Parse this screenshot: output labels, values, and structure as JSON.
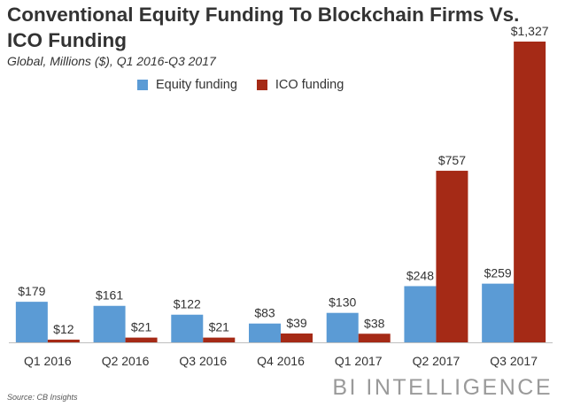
{
  "title": "Conventional Equity Funding To Blockchain Firms Vs. ICO Funding",
  "subtitle": "Global, Millions ($), Q1 2016-Q3 2017",
  "source": "Source: CB Insights",
  "brand": "BI INTELLIGENCE",
  "colors": {
    "equity": "#5b9bd5",
    "ico": "#a52a16"
  },
  "chart_data": {
    "type": "bar",
    "categories": [
      "Q1 2016",
      "Q2 2016",
      "Q3 2016",
      "Q4 2016",
      "Q1 2017",
      "Q2 2017",
      "Q3 2017"
    ],
    "series": [
      {
        "name": "Equity funding",
        "values": [
          179,
          161,
          122,
          83,
          130,
          248,
          259
        ],
        "labels": [
          "$179",
          "$161",
          "$122",
          "$83",
          "$130",
          "$248",
          "$259"
        ]
      },
      {
        "name": "ICO funding",
        "values": [
          12,
          21,
          21,
          39,
          38,
          757,
          1327
        ],
        "labels": [
          "$12",
          "$21",
          "$21",
          "$39",
          "$38",
          "$757",
          "$1,327"
        ]
      }
    ],
    "ylim": [
      0,
      1327
    ],
    "legend": "top",
    "grid": false
  }
}
